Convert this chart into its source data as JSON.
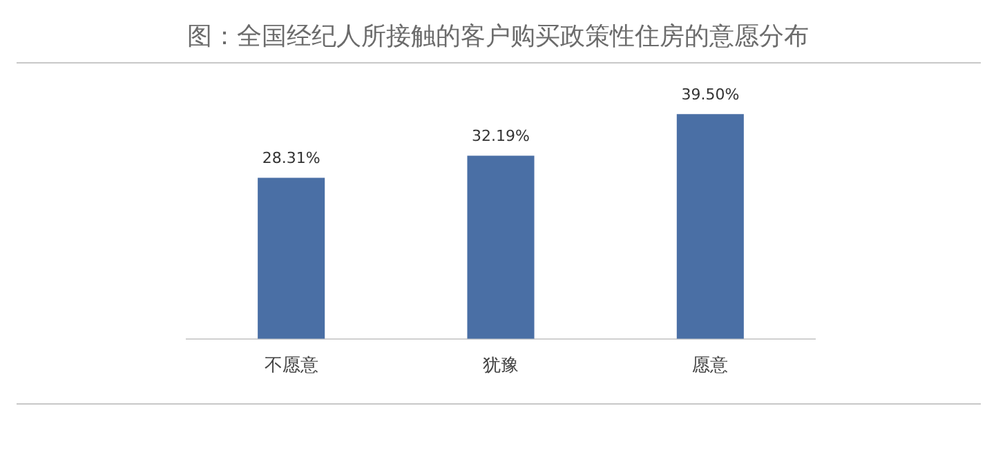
{
  "chart_data": {
    "type": "bar",
    "title": "图：全国经纪人所接触的客户购买政策性住房的意愿分布",
    "categories": [
      "不愿意",
      "犹豫",
      "愿意"
    ],
    "values": [
      28.31,
      32.19,
      39.5
    ],
    "value_labels": [
      "28.31%",
      "32.19%",
      "39.50%"
    ],
    "color": "#4a6fa5",
    "tick_labels": "x",
    "grid": false,
    "legend": false
  }
}
